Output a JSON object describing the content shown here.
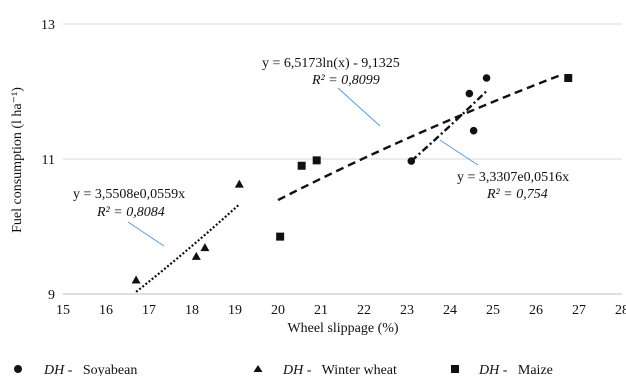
{
  "chart_data": {
    "type": "scatter",
    "title": "",
    "xlabel": "Wheel slippage (%)",
    "ylabel": "Fuel consumption (l ha⁻¹)",
    "xlim": [
      15,
      28
    ],
    "ylim": [
      9,
      13
    ],
    "x_ticks": [
      15,
      16,
      17,
      18,
      19,
      20,
      21,
      22,
      23,
      24,
      25,
      26,
      27,
      28
    ],
    "y_ticks": [
      9,
      11,
      13
    ],
    "grid": "horizontal",
    "legend_position": "bottom",
    "series": [
      {
        "name_prefix": "DH",
        "name_suffix": " -   Soyabean",
        "marker": "circle",
        "points": [
          [
            23.1,
            10.97
          ],
          [
            24.45,
            11.97
          ],
          [
            24.55,
            11.42
          ],
          [
            24.85,
            12.2
          ]
        ],
        "trendline": {
          "kind": "exponential",
          "a": 3.3307,
          "b": 0.0516,
          "x_range": [
            23.1,
            24.85
          ],
          "dash": "dashdot",
          "equation": "y = 3,3307e0,0516x",
          "r2_label": "R² = 0,754"
        }
      },
      {
        "name_prefix": "DH",
        "name_suffix": " -   Winter wheat",
        "marker": "triangle",
        "points": [
          [
            16.7,
            9.2
          ],
          [
            18.1,
            9.55
          ],
          [
            18.3,
            9.68
          ],
          [
            19.1,
            10.62
          ]
        ],
        "trendline": {
          "kind": "exponential",
          "a": 3.5508,
          "b": 0.0559,
          "x_range": [
            16.7,
            19.1
          ],
          "dash": "dotted",
          "equation": "y = 3,5508e0,0559x",
          "r2_label": "R² = 0,8084"
        }
      },
      {
        "name_prefix": "DH",
        "name_suffix": " -   Maize",
        "marker": "square",
        "points": [
          [
            20.05,
            9.85
          ],
          [
            20.55,
            10.9
          ],
          [
            20.9,
            10.98
          ],
          [
            26.75,
            12.2
          ]
        ],
        "trendline": {
          "kind": "logarithmic",
          "a": 6.5173,
          "b": -9.1325,
          "x_range": [
            20.0,
            26.6
          ],
          "dash": "dashed",
          "equation": "y = 6,5173ln(x) - 9,1325",
          "r2_label": "R² = 0,8099"
        }
      }
    ]
  }
}
